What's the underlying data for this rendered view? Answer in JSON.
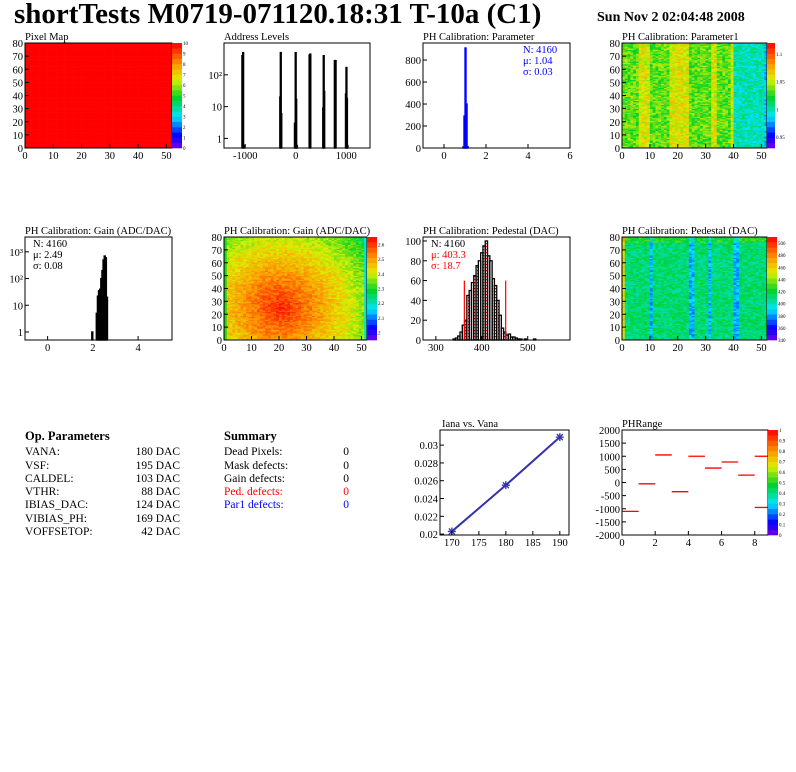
{
  "header": {
    "title": "shortTests M0719-071120.18:31 T-10a (C1)",
    "date": "Sun Nov  2 02:04:48 2008"
  },
  "op_parameters": {
    "title": "Op. Parameters",
    "rows": [
      {
        "name": "VANA:",
        "value": "180 DAC"
      },
      {
        "name": "VSF:",
        "value": "195 DAC"
      },
      {
        "name": "CALDEL:",
        "value": "103 DAC"
      },
      {
        "name": "VTHR:",
        "value": "88 DAC"
      },
      {
        "name": "IBIAS_DAC:",
        "value": "124 DAC"
      },
      {
        "name": "VIBIAS_PH:",
        "value": "169 DAC"
      },
      {
        "name": "VOFFSETOP:",
        "value": "42 DAC"
      }
    ]
  },
  "summary": {
    "title": "Summary",
    "rows": [
      {
        "name": "Dead Pixels:",
        "value": "0",
        "color": "#000000"
      },
      {
        "name": "Mask defects:",
        "value": "0",
        "color": "#000000"
      },
      {
        "name": "Gain defects:",
        "value": "0",
        "color": "#000000"
      },
      {
        "name": "Ped. defects:",
        "value": "0",
        "color": "#ff0000"
      },
      {
        "name": "Par1 defects:",
        "value": "0",
        "color": "#0000ff"
      }
    ]
  },
  "chart_data": [
    {
      "id": "pixel_map",
      "type": "heatmap",
      "title": "Pixel Map",
      "xlim": [
        0,
        52
      ],
      "ylim": [
        0,
        80
      ],
      "xticks": [
        0,
        10,
        20,
        30,
        40,
        50
      ],
      "yticks": [
        0,
        10,
        20,
        30,
        40,
        50,
        60,
        70,
        80
      ],
      "zlim": [
        0,
        10
      ],
      "zticks": [
        0,
        1,
        2,
        3,
        4,
        5,
        6,
        7,
        8,
        9,
        10
      ],
      "pattern": "uniform",
      "uniform_value": 10
    },
    {
      "id": "address_levels",
      "type": "histogram",
      "title": "Address Levels",
      "xlim": [
        -1420,
        1470
      ],
      "ylim": [
        0.5,
        1000
      ],
      "log_y": true,
      "xticks": [
        -1000,
        0,
        1000
      ],
      "yticks": [
        1,
        10,
        100
      ],
      "ytick_labels": [
        "1",
        "10",
        "10²"
      ],
      "color": "#000000",
      "bins": [
        [
          -1060,
          400
        ],
        [
          -1045,
          500
        ],
        [
          -1020,
          0.6
        ],
        [
          -310,
          20
        ],
        [
          -300,
          500
        ],
        [
          -290,
          6
        ],
        [
          -20,
          3
        ],
        [
          -5,
          500
        ],
        [
          5,
          17
        ],
        [
          20,
          0.6
        ],
        [
          270,
          420
        ],
        [
          285,
          450
        ],
        [
          540,
          9
        ],
        [
          550,
          400
        ],
        [
          560,
          30
        ],
        [
          770,
          280
        ],
        [
          785,
          280
        ],
        [
          990,
          25
        ],
        [
          1000,
          170
        ],
        [
          1010,
          18
        ],
        [
          1020,
          0.6
        ]
      ]
    },
    {
      "id": "ph_parameter",
      "type": "histogram",
      "title": "PH Calibration: Parameter",
      "xlim": [
        -1,
        6
      ],
      "ylim": [
        0,
        955
      ],
      "xticks": [
        0,
        2,
        4,
        6
      ],
      "yticks": [
        0,
        200,
        400,
        600,
        800
      ],
      "color": "#0000ff",
      "bins": [
        [
          0.925,
          10
        ],
        [
          0.975,
          290
        ],
        [
          1.025,
          910
        ],
        [
          1.075,
          400
        ],
        [
          1.125,
          12
        ]
      ],
      "bin_width": 0.05,
      "stats": [
        {
          "text": "N: 4160",
          "color": "#0000ff"
        },
        {
          "text": "μ: 1.04",
          "color": "#0000ff"
        },
        {
          "text": "σ: 0.03",
          "color": "#0000ff"
        }
      ]
    },
    {
      "id": "ph_parameter1",
      "type": "heatmap",
      "title": "PH Calibration: Parameter1",
      "xlim": [
        0,
        52
      ],
      "ylim": [
        0,
        80
      ],
      "xticks": [
        0,
        10,
        20,
        30,
        40,
        50
      ],
      "yticks": [
        0,
        10,
        20,
        30,
        40,
        50,
        60,
        70,
        80
      ],
      "zlim": [
        0.93,
        1.12
      ],
      "zticks": [
        0.95,
        1,
        1.05,
        1.1,
        1.15
      ],
      "pattern": "param1"
    },
    {
      "id": "gain_hist",
      "type": "histogram",
      "title": "PH Calibration: Gain (ADC/DAC)",
      "xlim": [
        -1,
        5.5
      ],
      "ylim": [
        0.5,
        3600
      ],
      "log_y": true,
      "xticks": [
        0,
        2,
        4
      ],
      "yticks": [
        1,
        10,
        100,
        1000
      ],
      "ytick_labels": [
        "1",
        "10",
        "10²",
        "10³"
      ],
      "color": "#000000",
      "bins": [
        [
          1.975,
          1
        ],
        [
          2.175,
          5
        ],
        [
          2.225,
          22
        ],
        [
          2.275,
          35
        ],
        [
          2.325,
          40
        ],
        [
          2.375,
          100
        ],
        [
          2.425,
          200
        ],
        [
          2.475,
          500
        ],
        [
          2.525,
          700
        ],
        [
          2.575,
          600
        ],
        [
          2.625,
          20
        ],
        [
          2.675,
          0.5
        ]
      ],
      "bin_width": 0.05,
      "stats": [
        {
          "text": "N: 4160",
          "color": "#000000"
        },
        {
          "text": "μ: 2.49",
          "color": "#000000"
        },
        {
          "text": "σ: 0.08",
          "color": "#000000"
        }
      ]
    },
    {
      "id": "gain_map",
      "type": "heatmap",
      "title": "PH Calibration: Gain (ADC/DAC)",
      "xlim": [
        0,
        52
      ],
      "ylim": [
        0,
        80
      ],
      "xticks": [
        0,
        10,
        20,
        30,
        40,
        50
      ],
      "yticks": [
        0,
        10,
        20,
        30,
        40,
        50,
        60,
        70,
        80
      ],
      "zlim": [
        1.95,
        2.65
      ],
      "zticks": [
        2,
        2.1,
        2.2,
        2.3,
        2.4,
        2.5,
        2.6
      ],
      "pattern": "gain"
    },
    {
      "id": "pedestal_hist",
      "type": "histogram",
      "title": "PH Calibration: Pedestal (DAC)",
      "xlim": [
        272,
        592
      ],
      "ylim": [
        0,
        104
      ],
      "xticks": [
        300,
        400,
        500
      ],
      "yticks": [
        0,
        20,
        40,
        60,
        80,
        100
      ],
      "color": "#000000",
      "cut_color": "#ff0000",
      "cuts": [
        362,
        452
      ],
      "cut_height": 60,
      "bins": [
        [
          340,
          1
        ],
        [
          345,
          2
        ],
        [
          350,
          4
        ],
        [
          355,
          8
        ],
        [
          360,
          15
        ],
        [
          365,
          20
        ],
        [
          370,
          45
        ],
        [
          375,
          50
        ],
        [
          380,
          58
        ],
        [
          385,
          65
        ],
        [
          390,
          75
        ],
        [
          395,
          80
        ],
        [
          400,
          88
        ],
        [
          405,
          95
        ],
        [
          410,
          100
        ],
        [
          415,
          85
        ],
        [
          420,
          80
        ],
        [
          425,
          62
        ],
        [
          430,
          55
        ],
        [
          435,
          40
        ],
        [
          440,
          25
        ],
        [
          445,
          12
        ],
        [
          450,
          8
        ],
        [
          455,
          5
        ],
        [
          460,
          6
        ],
        [
          465,
          3
        ],
        [
          470,
          3
        ],
        [
          475,
          2
        ],
        [
          480,
          1
        ],
        [
          485,
          1
        ],
        [
          495,
          1
        ],
        [
          515,
          1
        ]
      ],
      "bin_width": 5,
      "stats": [
        {
          "text": "N: 4160",
          "color": "#000000"
        },
        {
          "text": "μ: 403.3",
          "color": "#ff0000"
        },
        {
          "text": "σ: 18.7",
          "color": "#ff0000"
        }
      ]
    },
    {
      "id": "pedestal_map",
      "type": "heatmap",
      "title": "PH Calibration: Pedestal (DAC)",
      "xlim": [
        0,
        52
      ],
      "ylim": [
        0,
        80
      ],
      "xticks": [
        0,
        10,
        20,
        30,
        40,
        50
      ],
      "yticks": [
        0,
        10,
        20,
        30,
        40,
        50,
        60,
        70,
        80
      ],
      "zlim": [
        340,
        510
      ],
      "zticks": [
        340,
        360,
        380,
        400,
        420,
        440,
        460,
        480,
        500
      ],
      "pattern": "pedestal"
    },
    {
      "id": "iana_vs_vana",
      "type": "line",
      "title": "Iana vs. Vana",
      "xlim": [
        167.8,
        191.7
      ],
      "ylim": [
        0.0199,
        0.0317
      ],
      "xticks": [
        170,
        175,
        180,
        185,
        190
      ],
      "yticks": [
        0.02,
        0.022,
        0.024,
        0.026,
        0.028,
        0.03
      ],
      "color": "#3333aa",
      "x": [
        170,
        180,
        190
      ],
      "y": [
        0.0203,
        0.0255,
        0.0309
      ]
    },
    {
      "id": "ph_range",
      "type": "segments",
      "title": "PHRange",
      "xlim": [
        0,
        8.8
      ],
      "ylim": [
        -2000,
        2000
      ],
      "xticks": [
        0,
        2,
        4,
        6,
        8
      ],
      "yticks": [
        -2000,
        -1500,
        -1000,
        -500,
        0,
        500,
        1000,
        1500,
        2000
      ],
      "zlim": [
        0,
        1
      ],
      "zticks": [
        0,
        0.1,
        0.2,
        0.3,
        0.4,
        0.5,
        0.6,
        0.7,
        0.8,
        0.9,
        1
      ],
      "color": "#ff0000",
      "segments": [
        [
          0,
          1,
          -1100
        ],
        [
          1,
          2,
          -50
        ],
        [
          2,
          3,
          1050
        ],
        [
          3,
          4,
          -350
        ],
        [
          4,
          5,
          1000
        ],
        [
          5,
          6,
          550
        ],
        [
          6,
          7,
          780
        ],
        [
          7,
          8,
          280
        ],
        [
          8,
          8.8,
          1000
        ],
        [
          8,
          8.8,
          -950
        ]
      ]
    }
  ]
}
